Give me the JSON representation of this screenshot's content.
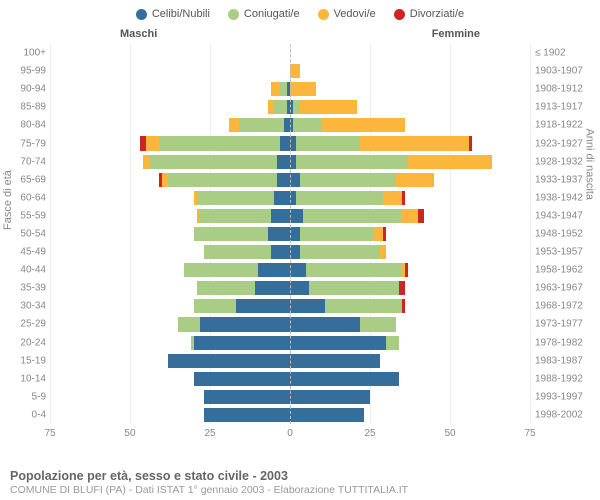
{
  "legend": [
    {
      "label": "Celibi/Nubili",
      "color": "#366e9b"
    },
    {
      "label": "Coniugati/e",
      "color": "#a9cd85"
    },
    {
      "label": "Vedovi/e",
      "color": "#fcb63b"
    },
    {
      "label": "Divorziati/e",
      "color": "#cb2525"
    }
  ],
  "headers": {
    "left": "Maschi",
    "right": "Femmine"
  },
  "ylabel_left": "Fasce di età",
  "ylabel_right": "Anni di nascita",
  "xticks": [
    75,
    50,
    25,
    0,
    25,
    50,
    75
  ],
  "xmax": 75,
  "colors": {
    "cel": "#366e9b",
    "con": "#a9cd85",
    "ved": "#fcb63b",
    "div": "#cb2525",
    "grid": "#eeeeee",
    "dash": "#bbbbbb"
  },
  "rows": [
    {
      "age": "100+",
      "yr": "≤ 1902",
      "m": [
        0,
        0,
        0,
        0
      ],
      "f": [
        0,
        0,
        0,
        0
      ]
    },
    {
      "age": "95-99",
      "yr": "1903-1907",
      "m": [
        0,
        0,
        0,
        0
      ],
      "f": [
        0,
        0,
        3,
        0
      ]
    },
    {
      "age": "90-94",
      "yr": "1908-1912",
      "m": [
        1,
        2,
        3,
        0
      ],
      "f": [
        0,
        0,
        8,
        0
      ]
    },
    {
      "age": "85-89",
      "yr": "1913-1917",
      "m": [
        1,
        4,
        2,
        0
      ],
      "f": [
        1,
        2,
        18,
        0
      ]
    },
    {
      "age": "80-84",
      "yr": "1918-1922",
      "m": [
        2,
        14,
        3,
        0
      ],
      "f": [
        1,
        9,
        26,
        0
      ]
    },
    {
      "age": "75-79",
      "yr": "1923-1927",
      "m": [
        3,
        38,
        4,
        2
      ],
      "f": [
        2,
        20,
        34,
        1
      ]
    },
    {
      "age": "70-74",
      "yr": "1928-1932",
      "m": [
        4,
        40,
        2,
        0
      ],
      "f": [
        2,
        35,
        26,
        0
      ]
    },
    {
      "age": "65-69",
      "yr": "1933-1937",
      "m": [
        4,
        34,
        2,
        1
      ],
      "f": [
        3,
        30,
        12,
        0
      ]
    },
    {
      "age": "60-64",
      "yr": "1938-1942",
      "m": [
        5,
        24,
        1,
        0
      ],
      "f": [
        2,
        27,
        6,
        1
      ]
    },
    {
      "age": "55-59",
      "yr": "1943-1947",
      "m": [
        6,
        22,
        1,
        0
      ],
      "f": [
        4,
        31,
        5,
        2
      ]
    },
    {
      "age": "50-54",
      "yr": "1948-1952",
      "m": [
        7,
        23,
        0,
        0
      ],
      "f": [
        3,
        23,
        3,
        1
      ]
    },
    {
      "age": "45-49",
      "yr": "1953-1957",
      "m": [
        6,
        21,
        0,
        0
      ],
      "f": [
        3,
        25,
        2,
        0
      ]
    },
    {
      "age": "40-44",
      "yr": "1958-1962",
      "m": [
        10,
        23,
        0,
        0
      ],
      "f": [
        5,
        30,
        1,
        1
      ]
    },
    {
      "age": "35-39",
      "yr": "1963-1967",
      "m": [
        11,
        18,
        0,
        0
      ],
      "f": [
        6,
        28,
        0,
        2
      ]
    },
    {
      "age": "30-34",
      "yr": "1968-1972",
      "m": [
        17,
        13,
        0,
        0
      ],
      "f": [
        11,
        24,
        0,
        1
      ]
    },
    {
      "age": "25-29",
      "yr": "1973-1977",
      "m": [
        28,
        7,
        0,
        0
      ],
      "f": [
        22,
        11,
        0,
        0
      ]
    },
    {
      "age": "20-24",
      "yr": "1978-1982",
      "m": [
        30,
        1,
        0,
        0
      ],
      "f": [
        30,
        4,
        0,
        0
      ]
    },
    {
      "age": "15-19",
      "yr": "1983-1987",
      "m": [
        38,
        0,
        0,
        0
      ],
      "f": [
        28,
        0,
        0,
        0
      ]
    },
    {
      "age": "10-14",
      "yr": "1988-1992",
      "m": [
        30,
        0,
        0,
        0
      ],
      "f": [
        34,
        0,
        0,
        0
      ]
    },
    {
      "age": "5-9",
      "yr": "1993-1997",
      "m": [
        27,
        0,
        0,
        0
      ],
      "f": [
        25,
        0,
        0,
        0
      ]
    },
    {
      "age": "0-4",
      "yr": "1998-2002",
      "m": [
        27,
        0,
        0,
        0
      ],
      "f": [
        23,
        0,
        0,
        0
      ]
    }
  ],
  "footer": {
    "title": "Popolazione per età, sesso e stato civile - 2003",
    "sub": "COMUNE DI BLUFI (PA) - Dati ISTAT 1° gennaio 2003 - Elaborazione TUTTITALIA.IT"
  }
}
